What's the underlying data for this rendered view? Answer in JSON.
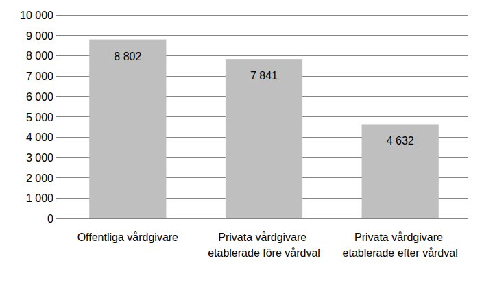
{
  "chart_data": {
    "type": "bar",
    "categories": [
      "Offentliga vårdgivare",
      "Privata vårdgivare etablerade före vårdval",
      "Privata vårdgivare etablerade efter vårdval"
    ],
    "values": [
      8802,
      7841,
      4632
    ],
    "value_labels": [
      "8 802",
      "7 841",
      "4 632"
    ],
    "data_labels": true,
    "color": "#bfbfbf",
    "ylim": [
      0,
      10000
    ],
    "yticks": [
      0,
      {
        "value": 1000,
        "label": "1 000"
      },
      {
        "value": 2000,
        "label": "2 000"
      },
      {
        "value": 3000,
        "label": "3 000"
      },
      {
        "value": 4000,
        "label": "4 000"
      },
      {
        "value": 5000,
        "label": "5 000"
      },
      {
        "value": 6000,
        "label": "6 000"
      },
      {
        "value": 7000,
        "label": "7 000"
      },
      {
        "value": 8000,
        "label": "8 000"
      },
      {
        "value": 9000,
        "label": "9 000"
      },
      {
        "value": 10000,
        "label": "10 000"
      }
    ],
    "grid": true
  }
}
